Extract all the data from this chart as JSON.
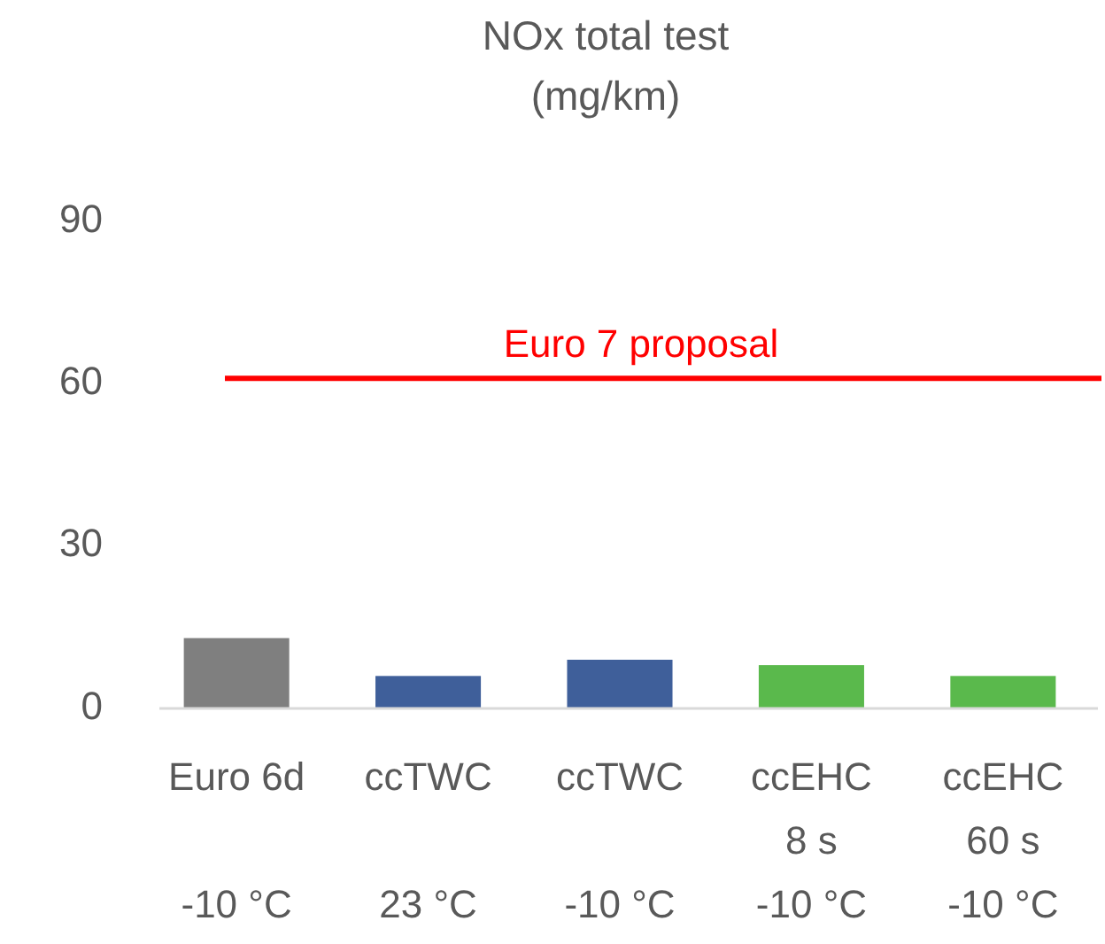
{
  "chart_data": {
    "type": "bar",
    "title": "NOx total test\n(mg/km)",
    "categories": [
      "Euro 6d\n\n-10 °C",
      "ccTWC\n\n23 °C",
      "ccTWC\n\n-10 °C",
      "ccEHC\n8 s\n-10 °C",
      "ccEHC\n60 s\n-10 °C"
    ],
    "values": [
      13,
      6,
      9,
      8,
      6
    ],
    "colors": [
      "#7f7f7f",
      "#3f5f9a",
      "#3f5f9a",
      "#5ab94c",
      "#5ab94c"
    ],
    "ylim": [
      0,
      90
    ],
    "yticks": [
      0,
      30,
      60,
      90
    ],
    "grid": false,
    "ref_lines": [
      {
        "axis": "y",
        "value": 61,
        "label": "Euro 7 proposal",
        "color": "#ff0000"
      }
    ]
  }
}
